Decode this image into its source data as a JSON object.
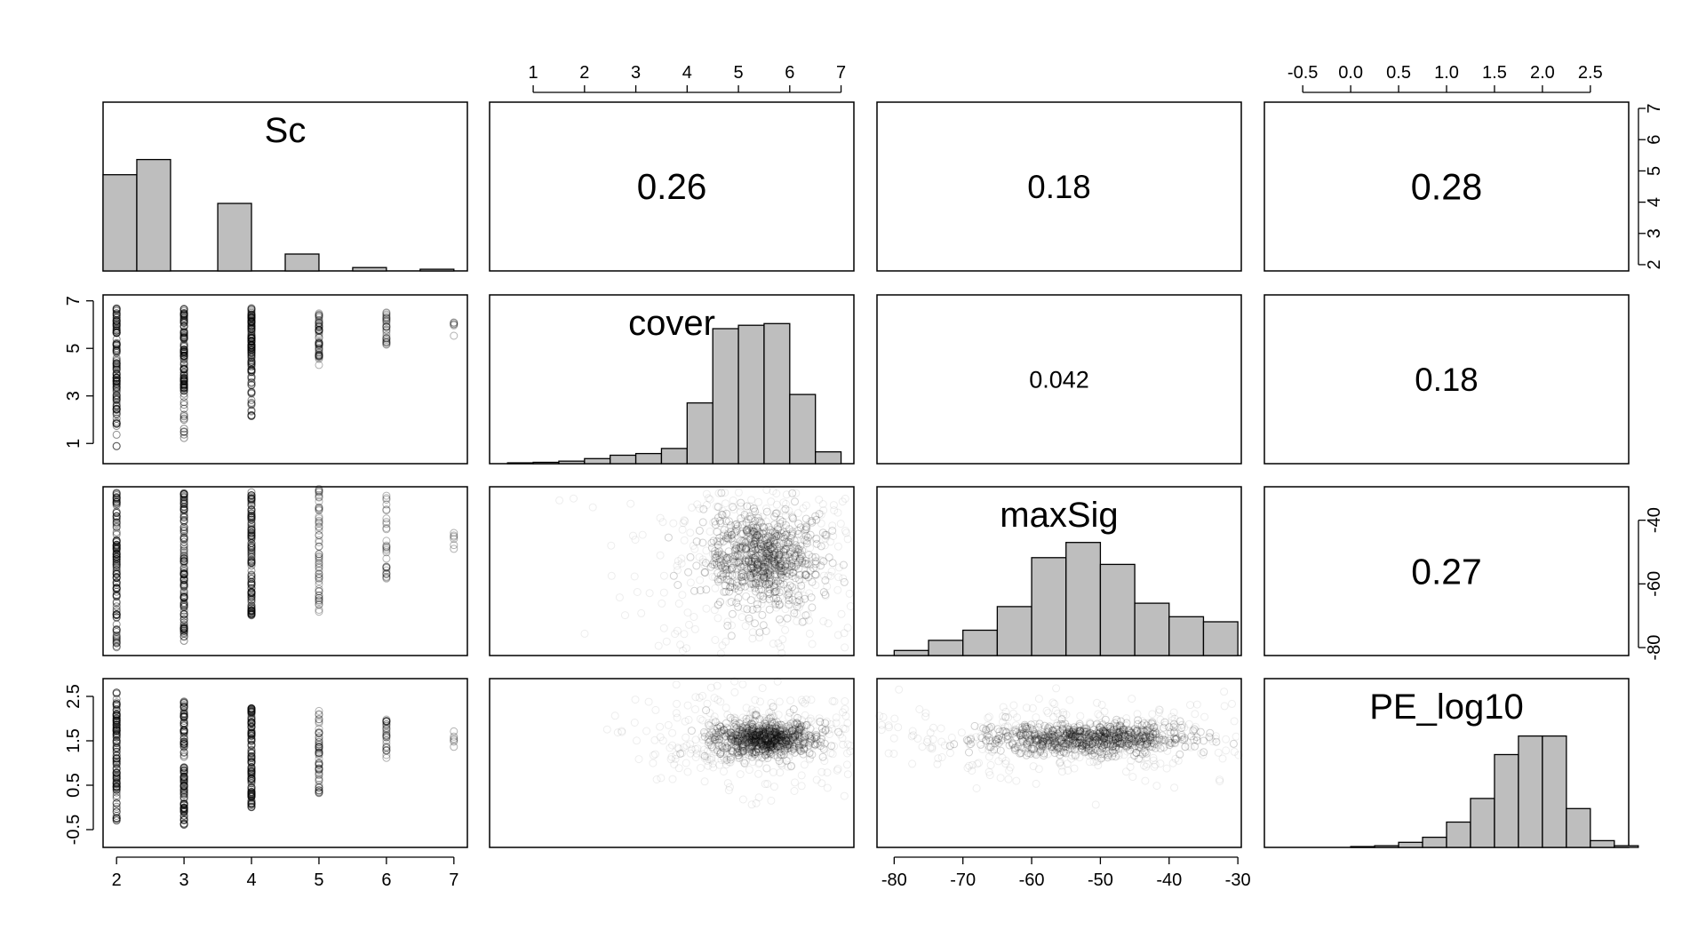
{
  "chart_data": {
    "type": "scatter",
    "variables": [
      "Sc",
      "cover",
      "maxSig",
      "PE_log10"
    ],
    "ranges": {
      "Sc": [
        1.8,
        7.2
      ],
      "cover": [
        0.15,
        7.25
      ],
      "maxSig": [
        -82.5,
        -29.5
      ],
      "PE_log10": [
        -0.9,
        2.9
      ]
    },
    "axis_ticks": {
      "Sc": [
        2,
        3,
        4,
        5,
        6,
        7
      ],
      "cover_top": [
        1,
        2,
        3,
        4,
        5,
        6,
        7
      ],
      "cover_left": [
        1,
        3,
        5,
        7
      ],
      "maxSig_bottom": [
        -80,
        -70,
        -60,
        -50,
        -40,
        -30
      ],
      "maxSig_right": [
        -40,
        -60,
        -80
      ],
      "PE_log10_top": [
        -0.5,
        0.0,
        0.5,
        1.0,
        1.5,
        2.0,
        2.5
      ],
      "PE_log10_left": [
        -0.5,
        0.5,
        1.5,
        2.5
      ],
      "Sc_right": [
        2,
        3,
        4,
        5,
        6,
        7
      ]
    },
    "tick_labels": {
      "Sc": [
        "2",
        "3",
        "4",
        "5",
        "6",
        "7"
      ],
      "cover_top": [
        "1",
        "2",
        "3",
        "4",
        "5",
        "6",
        "7"
      ],
      "cover_left": [
        "1",
        "3",
        "5",
        "7"
      ],
      "maxSig_bottom": [
        "-80",
        "-70",
        "-60",
        "-50",
        "-40",
        "-30"
      ],
      "maxSig_right": [
        "-40",
        "-60",
        "-80"
      ],
      "PE_log10_top": [
        "-0.5",
        "0.0",
        "0.5",
        "1.0",
        "1.5",
        "2.0",
        "2.5"
      ],
      "PE_log10_left": [
        "-0.5",
        "0.5",
        "1.5",
        "2.5"
      ],
      "Sc_right": [
        "2",
        "3",
        "4",
        "5",
        "6",
        "7"
      ]
    },
    "correlations": [
      {
        "row": 0,
        "col": 1,
        "value": "0.26",
        "size": 0.26
      },
      {
        "row": 0,
        "col": 2,
        "value": "0.18",
        "size": 0.18
      },
      {
        "row": 0,
        "col": 3,
        "value": "0.28",
        "size": 0.28
      },
      {
        "row": 1,
        "col": 2,
        "value": "0.042",
        "size": 0.042
      },
      {
        "row": 1,
        "col": 3,
        "value": "0.18",
        "size": 0.18
      },
      {
        "row": 2,
        "col": 3,
        "value": "0.27",
        "size": 0.27
      }
    ],
    "histograms": {
      "Sc": {
        "bins": [
          [
            1.8,
            2.3
          ],
          [
            2.3,
            2.8
          ],
          [
            3.5,
            4.0
          ],
          [
            4.5,
            5.0
          ],
          [
            5.5,
            6.0
          ],
          [
            6.5,
            7.0
          ]
        ],
        "heights": [
          0.57,
          0.66,
          0.4,
          0.1,
          0.02,
          0.01
        ]
      },
      "cover": {
        "bins": [
          [
            0.5,
            1.0
          ],
          [
            1.0,
            1.5
          ],
          [
            1.5,
            2.0
          ],
          [
            2.0,
            2.5
          ],
          [
            2.5,
            3.0
          ],
          [
            3.0,
            3.5
          ],
          [
            3.5,
            4.0
          ],
          [
            4.0,
            4.5
          ],
          [
            4.5,
            5.0
          ],
          [
            5.0,
            5.5
          ],
          [
            5.5,
            6.0
          ],
          [
            6.0,
            6.5
          ],
          [
            6.5,
            7.0
          ]
        ],
        "heights": [
          0.005,
          0.008,
          0.015,
          0.03,
          0.05,
          0.06,
          0.09,
          0.36,
          0.8,
          0.82,
          0.83,
          0.41,
          0.07
        ]
      },
      "maxSig": {
        "bins": [
          [
            -80,
            -75
          ],
          [
            -75,
            -70
          ],
          [
            -70,
            -65
          ],
          [
            -65,
            -60
          ],
          [
            -60,
            -55
          ],
          [
            -55,
            -50
          ],
          [
            -50,
            -45
          ],
          [
            -45,
            -40
          ],
          [
            -40,
            -35
          ],
          [
            -35,
            -30
          ]
        ],
        "heights": [
          0.03,
          0.09,
          0.15,
          0.29,
          0.58,
          0.67,
          0.54,
          0.31,
          0.23,
          0.2
        ]
      },
      "PE_log10": {
        "bins": [
          [
            0.0,
            0.25
          ],
          [
            0.25,
            0.5
          ],
          [
            0.5,
            0.75
          ],
          [
            0.75,
            1.0
          ],
          [
            1.0,
            1.25
          ],
          [
            1.25,
            1.5
          ],
          [
            1.5,
            1.75
          ],
          [
            1.75,
            2.0
          ],
          [
            2.0,
            2.25
          ],
          [
            2.25,
            2.5
          ],
          [
            2.5,
            2.75
          ],
          [
            2.75,
            3.0
          ]
        ],
        "heights": [
          0.005,
          0.01,
          0.03,
          0.06,
          0.15,
          0.29,
          0.55,
          0.66,
          0.66,
          0.23,
          0.04,
          0.01
        ]
      }
    },
    "scatter_summary": {
      "cover_vs_Sc": [
        {
          "Sc": 2,
          "min": 0.7,
          "max": 6.7,
          "dense_from": 1.8
        },
        {
          "Sc": 3,
          "min": 0.9,
          "max": 6.7,
          "dense_from": 3.2
        },
        {
          "Sc": 4,
          "min": 2.1,
          "max": 6.7,
          "dense_from": 4.0
        },
        {
          "Sc": 5,
          "min": 4.3,
          "max": 6.6,
          "dense_from": 4.6
        },
        {
          "Sc": 6,
          "min": 4.6,
          "max": 6.6,
          "dense_from": 5.2
        },
        {
          "Sc": 7,
          "min": 5.5,
          "max": 6.1,
          "dense_from": 6.0
        }
      ],
      "maxSig_vs_Sc": [
        {
          "Sc": 2,
          "min": -80,
          "max": -30
        },
        {
          "Sc": 3,
          "min": -78,
          "max": -30
        },
        {
          "Sc": 4,
          "min": -70,
          "max": -30
        },
        {
          "Sc": 5,
          "min": -70,
          "max": -30
        },
        {
          "Sc": 6,
          "min": -60,
          "max": -32
        },
        {
          "Sc": 7,
          "min": -50,
          "max": -44
        }
      ],
      "PE_log10_vs_Sc": [
        {
          "Sc": 2,
          "min": -0.3,
          "max": 2.6
        },
        {
          "Sc": 3,
          "min": -0.4,
          "max": 2.4
        },
        {
          "Sc": 4,
          "min": 0.0,
          "max": 2.3
        },
        {
          "Sc": 5,
          "min": 0.3,
          "max": 2.2
        },
        {
          "Sc": 6,
          "min": 1.1,
          "max": 2.0
        },
        {
          "Sc": 7,
          "min": 1.2,
          "max": 1.8
        }
      ],
      "maxSig_vs_cover": {
        "center": [
          5.5,
          -52
        ],
        "spread": [
          0.7,
          9
        ]
      },
      "PE_log10_vs_cover": {
        "center": [
          5.5,
          1.55
        ],
        "spread": [
          0.6,
          0.25
        ]
      },
      "PE_log10_vs_maxSig": {
        "center": [
          -52,
          1.55
        ],
        "spread": [
          9,
          0.22
        ]
      }
    },
    "title": "",
    "grid": false,
    "legend": "none"
  }
}
